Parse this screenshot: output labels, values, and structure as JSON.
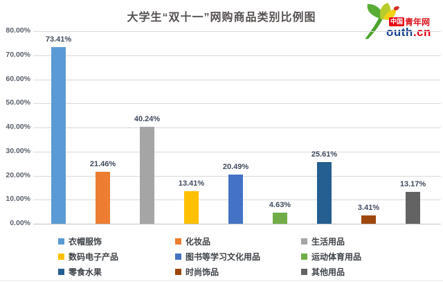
{
  "title": "大学生“双十一”网购商品类别比例图",
  "logo": {
    "badge_cn": "中国",
    "badge_rest": "青年网",
    "domain_main": "outh",
    "domain_suffix": ".cn"
  },
  "chart_data": {
    "type": "bar",
    "title": "大学生“双十一”网购商品类别比例图",
    "categories": [
      "衣帽服饰",
      "化妆品",
      "生活用品",
      "数码电子产品",
      "图书等学习文化用品",
      "运动体育用品",
      "零食水果",
      "时尚饰品",
      "其他用品"
    ],
    "values": [
      73.41,
      21.46,
      40.24,
      13.41,
      20.49,
      4.63,
      25.61,
      3.41,
      13.17
    ],
    "value_labels": [
      "73.41%",
      "21.46%",
      "40.24%",
      "13.41%",
      "20.49%",
      "4.63%",
      "25.61%",
      "3.41%",
      "13.17%"
    ],
    "colors": [
      "#5B9BD5",
      "#ED7D31",
      "#A5A5A5",
      "#FFC000",
      "#4472C4",
      "#70AD47",
      "#255E91",
      "#9E480E",
      "#636363"
    ],
    "xlabel": "",
    "ylabel": "",
    "ylim": [
      0,
      80
    ],
    "y_ticks": [
      "0.00%",
      "10.00%",
      "20.00%",
      "30.00%",
      "40.00%",
      "50.00%",
      "60.00%",
      "70.00%",
      "80.00%"
    ],
    "grid": true,
    "legend_position": "bottom"
  }
}
